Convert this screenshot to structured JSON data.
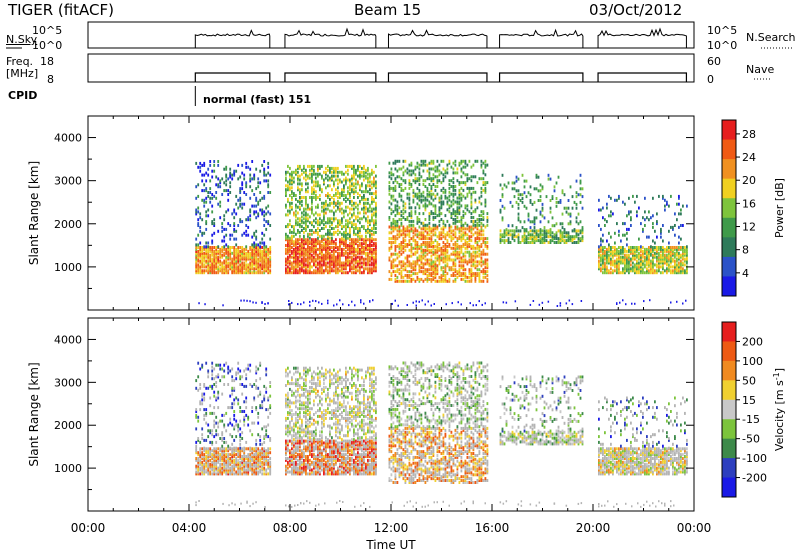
{
  "header": {
    "title": "TIGER (fitACF)",
    "beam": "Beam 15",
    "date": "03/Oct/2012"
  },
  "summary_panels": {
    "sky_label": "N.Sky",
    "search_label": "N.Search",
    "noise_ticks": [
      "10^5",
      "10^0"
    ],
    "freq_label_line1": "Freq.",
    "freq_label_line2": "[MHz]",
    "freq_ticks": [
      "18",
      "8"
    ],
    "nave_label": "Nave",
    "nave_ticks": [
      "60",
      "0"
    ],
    "cpid_label": "CPID",
    "mode_text": "normal (fast) 151"
  },
  "chart_data": [
    {
      "type": "heatmap",
      "name": "power-panel",
      "ylabel": "Slant Range [km]",
      "ylim": [
        0,
        4500
      ],
      "yticks": [
        1000,
        2000,
        3000,
        4000
      ],
      "xlim": [
        0,
        24
      ],
      "colorbar": {
        "label": "Power [dB]",
        "ticks": [
          "4",
          "8",
          "12",
          "16",
          "20",
          "24",
          "28"
        ],
        "range": [
          0,
          30
        ]
      },
      "scan_blocks_ut": [
        [
          4.25,
          7.2
        ],
        [
          7.8,
          11.4
        ],
        [
          11.9,
          15.8
        ],
        [
          16.3,
          19.6
        ],
        [
          20.2,
          23.7
        ]
      ]
    },
    {
      "type": "heatmap",
      "name": "velocity-panel",
      "ylabel": "Slant Range [km]",
      "ylim": [
        0,
        4500
      ],
      "yticks": [
        1000,
        2000,
        3000,
        4000
      ],
      "xlim": [
        0,
        24
      ],
      "xlabel": "Time UT",
      "xticks": [
        "00:00",
        "04:00",
        "08:00",
        "12:00",
        "16:00",
        "20:00",
        "00:00"
      ],
      "colorbar": {
        "label": "Velocity [m s",
        "label_sup": "-1",
        "label_tail": "]",
        "ticks": [
          "200",
          "100",
          "50",
          "15",
          "-15",
          "-50",
          "-100",
          "-200"
        ]
      },
      "scan_blocks_ut": [
        [
          4.25,
          7.2
        ],
        [
          7.8,
          11.4
        ],
        [
          11.9,
          15.8
        ],
        [
          16.3,
          19.6
        ],
        [
          20.2,
          23.7
        ]
      ]
    }
  ],
  "colors": {
    "power_scale": [
      "#1a1ae6",
      "#2b52c8",
      "#2e7a5a",
      "#3f9a4a",
      "#7ec43c",
      "#f0d020",
      "#f09020",
      "#f05a14",
      "#e61e1e"
    ],
    "velocity_scale": [
      "#1a1ae6",
      "#2d3fbf",
      "#3d8a4a",
      "#7cc43c",
      "#c8c8c8",
      "#f0d030",
      "#f08a20",
      "#ee5a14",
      "#e61e1e"
    ],
    "ground_scatter": "#b4b4b4"
  }
}
